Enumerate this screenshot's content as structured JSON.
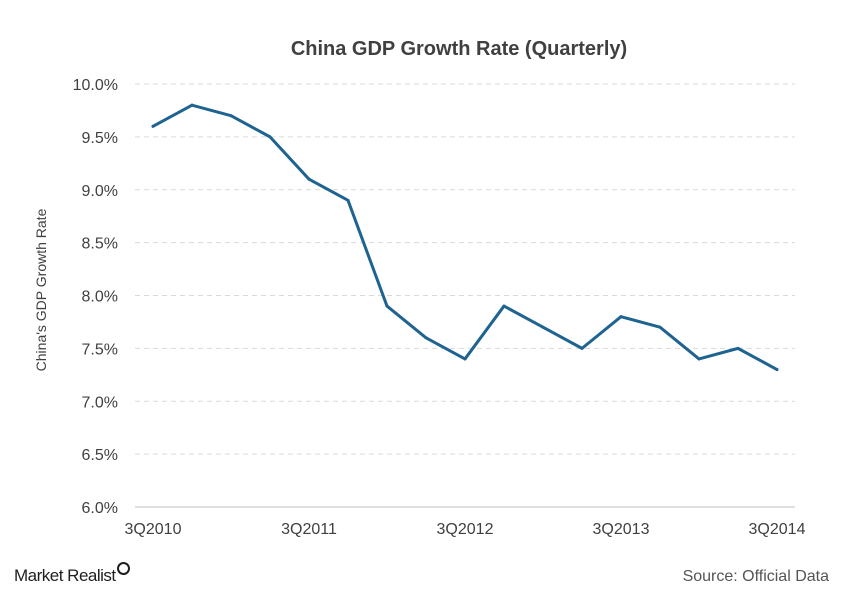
{
  "chart_data": {
    "type": "line",
    "title": "China GDP Growth Rate (Quarterly)",
    "xlabel": "",
    "ylabel": "China's GDP Growth Rate",
    "categories": [
      "3Q2010",
      "4Q2010",
      "1Q2011",
      "2Q2011",
      "3Q2011",
      "4Q2011",
      "1Q2012",
      "2Q2012",
      "3Q2012",
      "4Q2012",
      "1Q2013",
      "2Q2013",
      "3Q2013",
      "4Q2013",
      "1Q2014",
      "2Q2014",
      "3Q2014"
    ],
    "tick_labels": [
      "3Q2010",
      "3Q2011",
      "3Q2012",
      "3Q2013",
      "3Q2014"
    ],
    "series": [
      {
        "values": [
          9.6,
          9.8,
          9.7,
          9.5,
          9.1,
          8.9,
          7.9,
          7.6,
          7.4,
          7.9,
          7.7,
          7.5,
          7.8,
          7.7,
          7.4,
          7.5,
          7.3
        ]
      }
    ],
    "ylim": [
      6.0,
      10.0
    ],
    "yticks": [
      6.0,
      6.5,
      7.0,
      7.5,
      8.0,
      8.5,
      9.0,
      9.5,
      10.0
    ],
    "ytick_labels": [
      "6.0%",
      "6.5%",
      "7.0%",
      "7.5%",
      "8.0%",
      "8.5%",
      "9.0%",
      "9.5%",
      "10.0%"
    ],
    "grid": true,
    "line_color": "#1f6391"
  },
  "footer": {
    "brand": "Market Realist",
    "source": "Source: Official Data"
  }
}
